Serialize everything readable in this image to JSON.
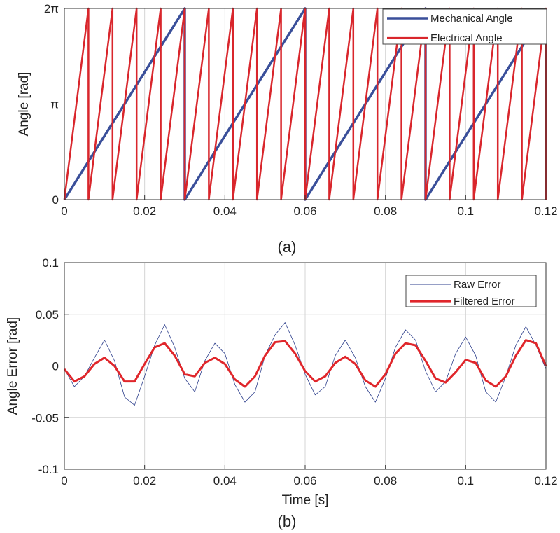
{
  "colors": {
    "mechanical": "#3a4f9a",
    "electrical": "#d9262c",
    "raw": "#2d3f8c",
    "filtered": "#e0262b",
    "grid": "#d4d4d4",
    "axis": "#333333"
  },
  "chart_data": [
    {
      "type": "line",
      "caption": "(a)",
      "ylabel": "Angle [rad]",
      "xlabel": "",
      "xlim": [
        0,
        0.12
      ],
      "ylim": [
        0,
        6.2832
      ],
      "grid": true,
      "legend_position": "top-right",
      "x_ticks": [
        {
          "value": 0,
          "label": "0"
        },
        {
          "value": 0.02,
          "label": "0.02"
        },
        {
          "value": 0.04,
          "label": "0.04"
        },
        {
          "value": 0.06,
          "label": "0.06"
        },
        {
          "value": 0.08,
          "label": "0.08"
        },
        {
          "value": 0.1,
          "label": "0.1"
        },
        {
          "value": 0.12,
          "label": "0.12"
        }
      ],
      "y_ticks": [
        {
          "value": 0,
          "label": "0"
        },
        {
          "value": 3.1416,
          "label": "π"
        },
        {
          "value": 6.2832,
          "label": "2π"
        }
      ],
      "series": [
        {
          "name": "Mechanical Angle",
          "color_key": "mechanical",
          "stroke_width": 3.5,
          "x": [
            0,
            0.03,
            0.03,
            0.06,
            0.06,
            0.09,
            0.09,
            0.12
          ],
          "y": [
            0,
            6.2832,
            0,
            6.2832,
            0,
            6.2832,
            0,
            6.2832
          ]
        },
        {
          "name": "Electrical Angle",
          "color_key": "electrical",
          "stroke_width": 2.5,
          "x": [
            0,
            0.006,
            0.006,
            0.012,
            0.012,
            0.018,
            0.018,
            0.024,
            0.024,
            0.03,
            0.03,
            0.036,
            0.036,
            0.042,
            0.042,
            0.048,
            0.048,
            0.054,
            0.054,
            0.06,
            0.06,
            0.066,
            0.066,
            0.072,
            0.072,
            0.078,
            0.078,
            0.084,
            0.084,
            0.09,
            0.09,
            0.096,
            0.096,
            0.102,
            0.102,
            0.108,
            0.108,
            0.114,
            0.114,
            0.12,
            0.12
          ],
          "y": [
            0,
            6.2832,
            0,
            6.2832,
            0,
            6.2832,
            0,
            6.2832,
            0,
            6.2832,
            0,
            6.2832,
            0,
            6.2832,
            0,
            6.2832,
            0,
            6.2832,
            0,
            6.2832,
            0,
            6.2832,
            0,
            6.2832,
            0,
            6.2832,
            0,
            6.2832,
            0,
            6.2832,
            0,
            6.2832,
            0,
            6.2832,
            0,
            6.2832,
            0,
            6.2832,
            0,
            6.2832,
            0
          ]
        }
      ]
    },
    {
      "type": "line",
      "caption": "(b)",
      "ylabel": "Angle Error [rad]",
      "xlabel": "Time [s]",
      "xlim": [
        0,
        0.12
      ],
      "ylim": [
        -0.1,
        0.1
      ],
      "grid": true,
      "legend_position": "top-right",
      "x_ticks": [
        {
          "value": 0,
          "label": "0"
        },
        {
          "value": 0.02,
          "label": "0.02"
        },
        {
          "value": 0.04,
          "label": "0.04"
        },
        {
          "value": 0.06,
          "label": "0.06"
        },
        {
          "value": 0.08,
          "label": "0.08"
        },
        {
          "value": 0.1,
          "label": "0.1"
        },
        {
          "value": 0.12,
          "label": "0.12"
        }
      ],
      "y_ticks": [
        {
          "value": -0.1,
          "label": "-0.1"
        },
        {
          "value": -0.05,
          "label": "-0.05"
        },
        {
          "value": 0,
          "label": "0"
        },
        {
          "value": 0.05,
          "label": "0.05"
        },
        {
          "value": 0.1,
          "label": "0.1"
        }
      ],
      "series": [
        {
          "name": "Raw Error",
          "color_key": "raw",
          "stroke_width": 0.8,
          "x": [
            0,
            0.0025,
            0.005,
            0.0075,
            0.01,
            0.0125,
            0.015,
            0.0175,
            0.02,
            0.0225,
            0.025,
            0.0275,
            0.03,
            0.0325,
            0.035,
            0.0375,
            0.04,
            0.0425,
            0.045,
            0.0475,
            0.05,
            0.0525,
            0.055,
            0.0575,
            0.06,
            0.0625,
            0.065,
            0.0675,
            0.07,
            0.0725,
            0.075,
            0.0775,
            0.08,
            0.0825,
            0.085,
            0.0875,
            0.09,
            0.0925,
            0.095,
            0.0975,
            0.1,
            0.1025,
            0.105,
            0.1075,
            0.11,
            0.1125,
            0.115,
            0.1175,
            0.12
          ],
          "y": [
            -0.003,
            -0.02,
            -0.01,
            0.008,
            0.025,
            0.005,
            -0.03,
            -0.038,
            -0.01,
            0.02,
            0.04,
            0.018,
            -0.012,
            -0.025,
            0.005,
            0.022,
            0.012,
            -0.018,
            -0.035,
            -0.025,
            0.01,
            0.03,
            0.042,
            0.02,
            -0.008,
            -0.028,
            -0.02,
            0.01,
            0.025,
            0.008,
            -0.02,
            -0.035,
            -0.012,
            0.018,
            0.035,
            0.025,
            -0.005,
            -0.025,
            -0.015,
            0.012,
            0.028,
            0.01,
            -0.025,
            -0.035,
            -0.01,
            0.02,
            0.038,
            0.02,
            -0.003
          ]
        },
        {
          "name": "Filtered Error",
          "color_key": "filtered",
          "stroke_width": 3,
          "x": [
            0,
            0.0025,
            0.005,
            0.0075,
            0.01,
            0.0125,
            0.015,
            0.0175,
            0.02,
            0.0225,
            0.025,
            0.0275,
            0.03,
            0.0325,
            0.035,
            0.0375,
            0.04,
            0.0425,
            0.045,
            0.0475,
            0.05,
            0.0525,
            0.055,
            0.0575,
            0.06,
            0.0625,
            0.065,
            0.0675,
            0.07,
            0.0725,
            0.075,
            0.0775,
            0.08,
            0.0825,
            0.085,
            0.0875,
            0.09,
            0.0925,
            0.095,
            0.0975,
            0.1,
            0.1025,
            0.105,
            0.1075,
            0.11,
            0.1125,
            0.115,
            0.1175,
            0.12
          ],
          "y": [
            -0.003,
            -0.015,
            -0.01,
            0.002,
            0.008,
            0.0,
            -0.015,
            -0.015,
            0.002,
            0.018,
            0.022,
            0.01,
            -0.008,
            -0.01,
            0.003,
            0.008,
            0.002,
            -0.013,
            -0.02,
            -0.01,
            0.01,
            0.023,
            0.024,
            0.012,
            -0.005,
            -0.015,
            -0.01,
            0.003,
            0.009,
            0.002,
            -0.014,
            -0.02,
            -0.008,
            0.012,
            0.022,
            0.02,
            0.005,
            -0.012,
            -0.016,
            -0.006,
            0.006,
            0.003,
            -0.014,
            -0.02,
            -0.01,
            0.01,
            0.025,
            0.022,
            0.0
          ]
        }
      ]
    }
  ]
}
